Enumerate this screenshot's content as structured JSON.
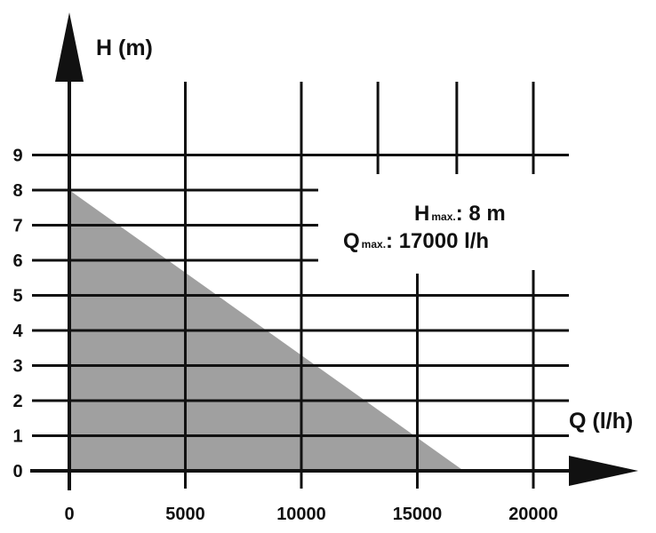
{
  "chart_data": {
    "type": "area",
    "title": "",
    "xlabel": "Q (l/h)",
    "ylabel": "H (m)",
    "x": [
      0,
      17000
    ],
    "values": [
      8,
      0
    ],
    "xlim": [
      0,
      20000
    ],
    "ylim": [
      0,
      9
    ],
    "x_ticks": [
      "0",
      "5000",
      "10000",
      "15000",
      "20000"
    ],
    "y_ticks": [
      "0",
      "1",
      "2",
      "3",
      "4",
      "5",
      "6",
      "7",
      "8",
      "9"
    ],
    "grid": true,
    "fill_color": "#a0a0a0",
    "annotation": {
      "line1": {
        "main": "H",
        "sub": "max.",
        "value": ": 8 m"
      },
      "line2": {
        "main": "Q",
        "sub": "max.",
        "value": ": 17000 l/h"
      }
    }
  }
}
